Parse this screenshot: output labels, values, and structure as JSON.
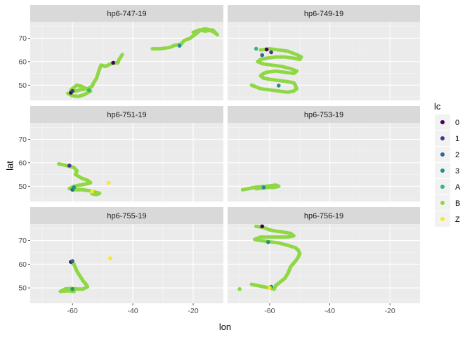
{
  "chart_data": {
    "type": "scatter",
    "layout": "facet_wrap",
    "ncol": 2,
    "xlabel": "lon",
    "ylabel": "lat",
    "xlim": [
      -74,
      -10
    ],
    "ylim": [
      43.5,
      77
    ],
    "x_ticks": [
      -60,
      -40,
      -20
    ],
    "y_ticks": [
      50,
      60,
      70
    ],
    "grid": true,
    "legend": {
      "title": "lc",
      "placement": "right",
      "entries": [
        {
          "label": "0",
          "color": "#440154"
        },
        {
          "label": "1",
          "color": "#443A83"
        },
        {
          "label": "2",
          "color": "#31688E"
        },
        {
          "label": "3",
          "color": "#21908C"
        },
        {
          "label": "A",
          "color": "#35B779"
        },
        {
          "label": "B",
          "color": "#8FD744"
        },
        {
          "label": "Z",
          "color": "#FDE725"
        }
      ]
    },
    "panels": [
      {
        "title": "hp6-747-19",
        "tracks": [
          {
            "lc": "B",
            "points": [
              [
                -61.5,
                46.5
              ],
              [
                -60,
                45.5
              ],
              [
                -58,
                45.2
              ],
              [
                -56,
                46
              ],
              [
                -54,
                47.5
              ],
              [
                -55.5,
                48.5
              ],
              [
                -57,
                49.5
              ],
              [
                -58.5,
                50
              ],
              [
                -59.5,
                49
              ],
              [
                -60.5,
                48
              ],
              [
                -59,
                47.5
              ],
              [
                -57.5,
                48
              ],
              [
                -55,
                48.5
              ],
              [
                -53.5,
                49.5
              ],
              [
                -53,
                51
              ],
              [
                -52,
                53
              ],
              [
                -51.5,
                55
              ],
              [
                -51,
                57
              ],
              [
                -50.5,
                58.5
              ],
              [
                -49,
                58
              ],
              [
                -47.5,
                59
              ],
              [
                -46.5,
                59.5
              ],
              [
                -45,
                59.5
              ],
              [
                -44.5,
                61
              ],
              [
                -43.5,
                63
              ]
            ]
          },
          {
            "lc": "B",
            "points": [
              [
                -33.5,
                65.5
              ],
              [
                -31,
                65.5
              ],
              [
                -28,
                66
              ],
              [
                -26,
                67
              ],
              [
                -24,
                67.5
              ],
              [
                -23,
                69
              ],
              [
                -21,
                70
              ],
              [
                -19.5,
                71.5
              ],
              [
                -18.5,
                72.5
              ],
              [
                -17.5,
                73.5
              ],
              [
                -16,
                74
              ],
              [
                -14.5,
                73.5
              ],
              [
                -13,
                72.5
              ],
              [
                -12,
                71.5
              ],
              [
                -13.5,
                73.5
              ],
              [
                -16,
                73
              ],
              [
                -18,
                73.5
              ],
              [
                -20,
                72.5
              ]
            ]
          }
        ],
        "points": [
          {
            "x": -60.5,
            "y": 46.8,
            "lc": "0"
          },
          {
            "x": -60,
            "y": 47.5,
            "lc": "1"
          },
          {
            "x": -46.5,
            "y": 59.5,
            "lc": "0"
          },
          {
            "x": -24.5,
            "y": 66.8,
            "lc": "3"
          },
          {
            "x": -54.5,
            "y": 47.8,
            "lc": "A"
          }
        ]
      },
      {
        "title": "hp6-749-19",
        "tracks": [
          {
            "lc": "B",
            "points": [
              [
                -63,
                65
              ],
              [
                -60,
                65.5
              ],
              [
                -57,
                65
              ],
              [
                -54,
                64.5
              ],
              [
                -51,
                63
              ],
              [
                -49.5,
                62
              ],
              [
                -50,
                61
              ],
              [
                -52,
                61.5
              ],
              [
                -55,
                62
              ],
              [
                -58,
                62
              ],
              [
                -61,
                61.5
              ],
              [
                -63,
                61
              ],
              [
                -64,
                60
              ],
              [
                -62,
                59
              ],
              [
                -59,
                58.5
              ],
              [
                -56,
                58
              ],
              [
                -53,
                57
              ],
              [
                -51,
                56
              ],
              [
                -52,
                55
              ],
              [
                -55,
                55.5
              ],
              [
                -58,
                56
              ],
              [
                -61,
                55.5
              ],
              [
                -62,
                55
              ],
              [
                -63,
                54
              ],
              [
                -62,
                53
              ],
              [
                -60,
                52.5
              ],
              [
                -57,
                52
              ],
              [
                -54,
                51.5
              ],
              [
                -52,
                51
              ],
              [
                -51.5,
                50
              ],
              [
                -51,
                48.5
              ],
              [
                -52,
                47.5
              ],
              [
                -54,
                47
              ],
              [
                -57,
                47.5
              ],
              [
                -60,
                48
              ],
              [
                -63,
                48.5
              ],
              [
                -65,
                49.5
              ],
              [
                -66,
                50
              ]
            ]
          }
        ],
        "points": [
          {
            "x": -59.5,
            "y": 64,
            "lc": "1"
          },
          {
            "x": -61,
            "y": 65.2,
            "lc": "0"
          },
          {
            "x": -62.5,
            "y": 62.8,
            "lc": "2"
          },
          {
            "x": -57,
            "y": 49.8,
            "lc": "3"
          },
          {
            "x": -64.5,
            "y": 65.5,
            "lc": "A"
          }
        ]
      },
      {
        "title": "hp6-751-19",
        "tracks": [
          {
            "lc": "B",
            "points": [
              [
                -64.5,
                59.5
              ],
              [
                -62.5,
                59
              ],
              [
                -61,
                58.5
              ],
              [
                -59.5,
                58
              ],
              [
                -58.5,
                56.5
              ],
              [
                -59,
                55
              ],
              [
                -57,
                53.5
              ],
              [
                -55,
                52.5
              ],
              [
                -54,
                51.5
              ],
              [
                -55.5,
                51
              ],
              [
                -57.5,
                50.5
              ],
              [
                -59.5,
                50
              ],
              [
                -61,
                49
              ],
              [
                -59,
                48.5
              ],
              [
                -56.5,
                48.5
              ],
              [
                -54,
                48
              ],
              [
                -52.5,
                47.5
              ],
              [
                -51,
                47
              ],
              [
                -52,
                46.5
              ],
              [
                -53.5,
                46.8
              ]
            ]
          }
        ],
        "points": [
          {
            "x": -61,
            "y": 58.8,
            "lc": "1"
          },
          {
            "x": -60,
            "y": 48.5,
            "lc": "2"
          },
          {
            "x": -59.5,
            "y": 49.5,
            "lc": "3"
          },
          {
            "x": -53.5,
            "y": 47.8,
            "lc": "Z"
          },
          {
            "x": -48,
            "y": 51.5,
            "lc": "Z"
          }
        ]
      },
      {
        "title": "hp6-753-19",
        "tracks": [
          {
            "lc": "B",
            "points": [
              [
                -69,
                48.5
              ],
              [
                -67,
                49
              ],
              [
                -65,
                49.5
              ],
              [
                -63,
                49.8
              ],
              [
                -61,
                50
              ],
              [
                -59.5,
                50.2
              ],
              [
                -58,
                50.5
              ],
              [
                -57,
                50
              ],
              [
                -58.5,
                49.5
              ],
              [
                -60.5,
                49.5
              ],
              [
                -62.5,
                49.2
              ],
              [
                -64.5,
                49
              ]
            ]
          }
        ],
        "points": [
          {
            "x": -62,
            "y": 49.5,
            "lc": "3"
          }
        ]
      },
      {
        "title": "hp6-755-19",
        "tracks": [
          {
            "lc": "B",
            "points": [
              [
                -60.5,
                61
              ],
              [
                -59.5,
                60
              ],
              [
                -59,
                58.5
              ],
              [
                -58.5,
                57
              ],
              [
                -57.5,
                55
              ],
              [
                -56.5,
                53
              ],
              [
                -55.5,
                51.5
              ],
              [
                -55,
                50.5
              ],
              [
                -56.5,
                49.5
              ],
              [
                -58.5,
                49.5
              ],
              [
                -60.5,
                49.8
              ],
              [
                -62.5,
                49.5
              ],
              [
                -64,
                48.5
              ],
              [
                -61.5,
                48.8
              ],
              [
                -59.5,
                48.5
              ]
            ]
          }
        ],
        "points": [
          {
            "x": -60.5,
            "y": 61,
            "lc": "0"
          },
          {
            "x": -60,
            "y": 61.3,
            "lc": "2"
          },
          {
            "x": -60,
            "y": 49.5,
            "lc": "3"
          },
          {
            "x": -47.5,
            "y": 62.5,
            "lc": "Z"
          }
        ]
      },
      {
        "title": "hp6-756-19",
        "tracks": [
          {
            "lc": "B",
            "points": [
              [
                -64.5,
                76
              ],
              [
                -62,
                75.5
              ],
              [
                -60,
                74.5
              ],
              [
                -58,
                74
              ],
              [
                -55,
                73.5
              ],
              [
                -53,
                73
              ],
              [
                -52,
                72
              ],
              [
                -54,
                71.5
              ],
              [
                -57,
                71.5
              ],
              [
                -60,
                71.5
              ],
              [
                -63,
                71.5
              ],
              [
                -65,
                70.5
              ],
              [
                -63,
                70
              ],
              [
                -60,
                69.5
              ],
              [
                -57,
                69
              ],
              [
                -54,
                68
              ],
              [
                -51.5,
                67
              ],
              [
                -50.5,
                66
              ],
              [
                -50,
                64.5
              ],
              [
                -50.5,
                63
              ],
              [
                -51,
                62
              ],
              [
                -52,
                60.5
              ],
              [
                -53,
                59
              ],
              [
                -53.5,
                57.5
              ],
              [
                -54,
                56
              ],
              [
                -55,
                54
              ],
              [
                -56.5,
                52.5
              ],
              [
                -58,
                51
              ],
              [
                -58.5,
                49.5
              ],
              [
                -60,
                50
              ],
              [
                -62,
                50.5
              ],
              [
                -64,
                51
              ],
              [
                -66,
                51.5
              ]
            ]
          }
        ],
        "points": [
          {
            "x": -62.5,
            "y": 76,
            "lc": "0"
          },
          {
            "x": -60.5,
            "y": 69.3,
            "lc": "3"
          },
          {
            "x": -59.5,
            "y": 50.5,
            "lc": "3"
          },
          {
            "x": -60,
            "y": 50,
            "lc": "Z"
          },
          {
            "x": -70,
            "y": 49.5,
            "lc": "B"
          }
        ]
      }
    ]
  }
}
